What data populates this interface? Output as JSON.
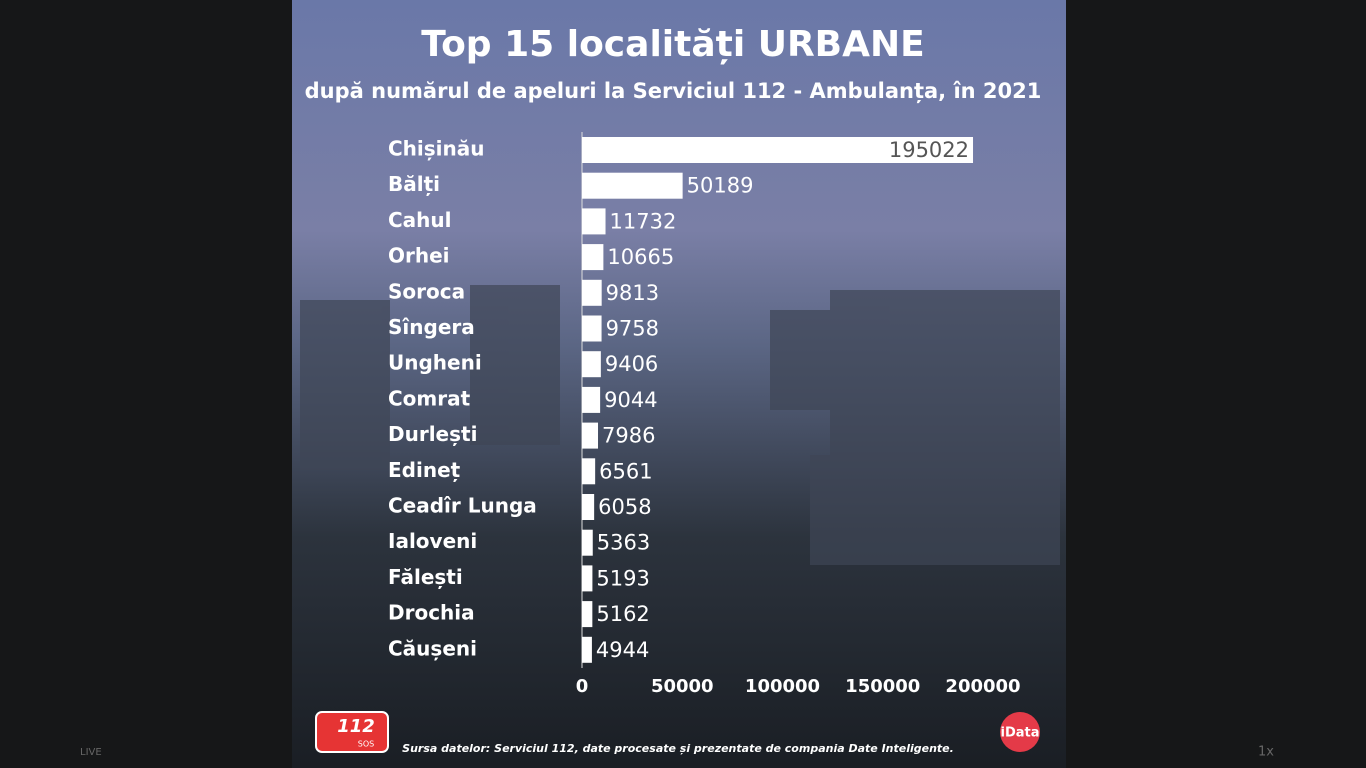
{
  "chart_data": {
    "type": "hbar",
    "title": "Top 15 localități URBANE",
    "subtitle": "după numărul de apeluri la Serviciul 112 - Ambulanța, în 2021",
    "categories": [
      "Chișinău",
      "Bălți",
      "Cahul",
      "Orhei",
      "Soroca",
      "Sîngera",
      "Ungheni",
      "Comrat",
      "Durlești",
      "Edineț",
      "Ceadîr Lunga",
      "Ialoveni",
      "Fălești",
      "Drochia",
      "Căușeni"
    ],
    "values": [
      195022,
      50189,
      11732,
      10665,
      9813,
      9758,
      9406,
      9044,
      7986,
      6561,
      6058,
      5363,
      5193,
      5162,
      4944
    ],
    "color": "#ffffff",
    "xlim": [
      0,
      200000
    ],
    "xticks": [
      0,
      50000,
      100000,
      150000,
      200000
    ],
    "grid": false
  },
  "source": "Sursa datelor: Serviciul 112, date procesate și prezentate de compania Date Inteligente.",
  "logos": {
    "left_number": "112",
    "left_text": "SOS",
    "right": "iData"
  },
  "player": {
    "live": "LIVE",
    "speed": "1x"
  }
}
